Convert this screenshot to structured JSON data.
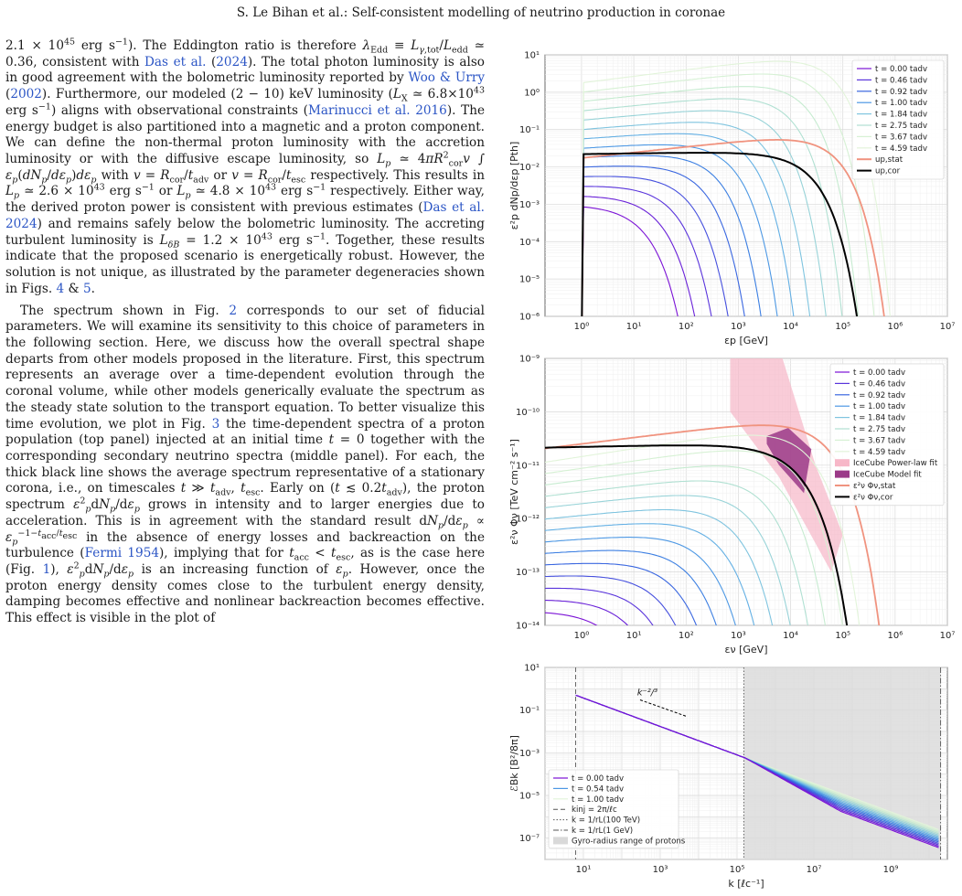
{
  "header": "S. Le Bihan et al.: Self-consistent modelling of neutrino production in coronae",
  "body": {
    "p1": "2.1 × 10<sup>45</sup> erg s<sup>−1</sup>). The Eddington ratio is therefore <i>λ</i><sub>Edd</sub> ≡ <i>L</i><sub><i>γ</i>,tot</sub>/<i>L</i><sub>edd</sub> ≃ 0.36, consistent with <span class=\"link\">Das et al.</span> (<span class=\"link\">2024</span>). The total photon luminosity is also in good agreement with the bolometric luminosity reported by <span class=\"link\">Woo &amp; Urry</span> (<span class=\"link\">2002</span>). Furthermore, our modeled (2 − 10) keV luminosity (<i>L</i><sub>X</sub> ≃ 6.8×10<sup>43</sup> erg s<sup>−1</sup>) aligns with observational constraints (<span class=\"link\">Marinucci et al. 2016</span>). The energy budget is also partitioned into a magnetic and a proton component. We can define the non-thermal proton luminosity with the accretion luminosity or with the diffusive escape luminosity, so <i>L<sub>p</sub></i> ≃ 4<i>πR</i><sup>2</sup><sub>cor</sub><i>v</i> ∫ <i>ε<sub>p</sub></i>(<i>dN<sub>p</sub></i>/<i>dε<sub>p</sub></i>)<i>dε<sub>p</sub></i> with <i>v</i> = <i>R</i><sub>cor</sub>/<i>t</i><sub>adv</sub> or <i>v</i> = <i>R</i><sub>cor</sub>/<i>t</i><sub>esc</sub> respectively. This results in <i>L<sub>p</sub></i> ≃ 2.6 × 10<sup>43</sup> erg s<sup>−1</sup> or <i>L<sub>p</sub></i> ≃ 4.8 × 10<sup>43</sup> erg s<sup>−1</sup> respectively. Either way, the derived proton power is consistent with previous estimates (<span class=\"link\">Das et al. 2024</span>) and remains safely below the bolometric luminosity. The accreting turbulent luminosity is <i>L<sub>δB</sub></i> = 1.2 × 10<sup>43</sup> erg s<sup>−1</sup>. Together, these results indicate that the proposed scenario is energetically robust. However, the solution is not unique, as illustrated by the parameter degeneracies shown in Figs. <span class=\"link\">4</span> &amp; <span class=\"link\">5</span>.",
    "p2": "The spectrum shown in Fig. <span class=\"link\">2</span> corresponds to our set of fiducial parameters. We will examine its sensitivity to this choice of parameters in the following section. Here, we discuss how the overall spectral shape departs from other models proposed in the literature. First, this spectrum represents an average over a time-dependent evolution through the coronal volume, while other models generically evaluate the spectrum as the steady state solution to the transport equation. To better visualize this time evolution, we plot in Fig. <span class=\"link\">3</span> the time-dependent spectra of a proton population (top panel) injected at an initial time <i>t</i> = 0 together with the corresponding secondary neutrino spectra (middle panel). For each, the thick black line shows the average spectrum representative of a stationary corona, i.e., on timescales <i>t</i> ≫ <i>t</i><sub>adv</sub>, <i>t</i><sub>esc</sub>. Early on (<i>t</i> ≲ 0.2<i>t</i><sub>adv</sub>), the proton spectrum <i>ε</i><sup>2</sup><sub><i>p</i></sub>d<i>N<sub>p</sub></i>/d<i>ε<sub>p</sub></i> grows in intensity and to larger energies due to acceleration. This is in agreement with the standard result d<i>N<sub>p</sub></i>/d<i>ε<sub>p</sub></i> ∝ <i>ε<sub>p</sub></i><sup>−1−<i>t</i><sub>acc</sub>/<i>t</i><sub>esc</sub></sup> in the absence of energy losses and backreaction on the turbulence (<span class=\"link\">Fermi 1954</span>), implying that for <i>t</i><sub>acc</sub> &lt; <i>t</i><sub>esc</sub>, as is the case here (Fig. <span class=\"link\">1</span>), <i>ε</i><sup>2</sup><sub><i>p</i></sub>d<i>N<sub>p</sub></i>/d<i>ε<sub>p</sub></i> is an increasing function of <i>ε<sub>p</sub></i>. However, once the proton energy density comes close to the turbulent energy density, damping becomes effective and nonlinear backreaction becomes effective. This effect is visible in the plot of"
  },
  "chart_data": [
    {
      "type": "line",
      "x_scale": "log",
      "y_scale": "log",
      "xlim": [
        0.2,
        10000000
      ],
      "ylim": [
        1e-06,
        10
      ],
      "xlabel": "εp [GeV]",
      "ylabel": "ε²p dNp/dεp [Pth]",
      "x_ticks": [
        "10⁰",
        "10¹",
        "10²",
        "10³",
        "10⁴",
        "10⁵",
        "10⁶",
        "10⁷"
      ],
      "y_ticks": [
        "10⁻⁶",
        "10⁻⁵",
        "10⁻⁴",
        "10⁻³",
        "10⁻²",
        "10⁻¹",
        "10⁰",
        "10¹"
      ],
      "grid": true,
      "legend_placement": "top-right",
      "legend": [
        "t = 0.00 tadv",
        "t = 0.46 tadv",
        "t = 0.92 tadv",
        "t = 1.00 tadv",
        "t = 1.84 tadv",
        "t = 2.75 tadv",
        "t = 3.67 tadv",
        "t = 4.59 tadv",
        "up,stat",
        "up,cor"
      ]
    },
    {
      "type": "line",
      "x_scale": "log",
      "y_scale": "log",
      "xlim": [
        0.2,
        10000000
      ],
      "ylim": [
        1e-14,
        1e-09
      ],
      "xlabel": "εν [GeV]",
      "ylabel": "ε²ν Φν [TeV cm⁻² s⁻¹]",
      "x_ticks": [
        "10⁰",
        "10¹",
        "10²",
        "10³",
        "10⁴",
        "10⁵",
        "10⁶",
        "10⁷"
      ],
      "y_ticks": [
        "10⁻¹⁴",
        "10⁻¹³",
        "10⁻¹²",
        "10⁻¹¹",
        "10⁻¹⁰",
        "10⁻⁹"
      ],
      "grid": true,
      "legend_placement": "top-right",
      "legend": [
        "t = 0.00 tadv",
        "t = 0.46 tadv",
        "t = 0.92 tadv",
        "t = 1.00 tadv",
        "t = 1.84 tadv",
        "t = 2.75 tadv",
        "t = 3.67 tadv",
        "t = 4.59 tadv",
        "IceCube Power-law fit",
        "IceCube Model fit",
        "ε²ν Φν,stat",
        "ε²ν Φν,cor"
      ]
    },
    {
      "type": "line",
      "x_scale": "log",
      "y_scale": "log",
      "xlim": [
        1,
        30000000000
      ],
      "ylim": [
        1e-08,
        10
      ],
      "xlabel": "k [ℓc⁻¹]",
      "ylabel": "ℰBk [B²/8π]",
      "x_ticks": [
        "10¹",
        "10³",
        "10⁵",
        "10⁷",
        "10⁹"
      ],
      "y_ticks": [
        "10⁻⁷",
        "10⁻⁵",
        "10⁻³",
        "10⁻¹",
        "10¹"
      ],
      "annotation": "k⁻²/³",
      "grid": true,
      "legend_placement": "lower-left",
      "legend": [
        "t = 0.00 tadv",
        "t = 0.54 tadv",
        "t = 1.00 tadv",
        "kinj = 2π/ℓc",
        "k = 1/rL(100 TeV)",
        "k = 1/rL(1 GeV)",
        "Gyro-radius range of protons"
      ]
    }
  ]
}
